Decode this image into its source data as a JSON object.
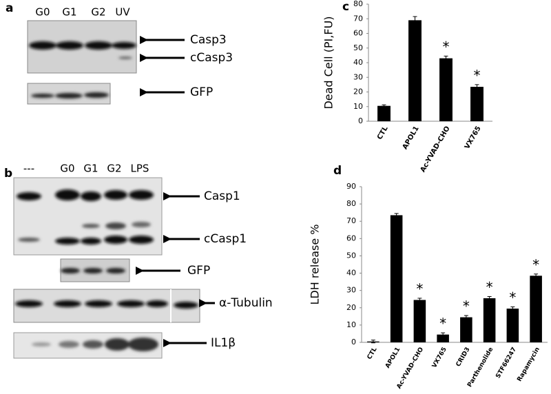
{
  "panels": {
    "a": {
      "label": "a",
      "lanes": [
        "G0",
        "G1",
        "G2",
        "UV"
      ],
      "bands": [
        "Casp3",
        "cCasp3",
        "GFP"
      ]
    },
    "b": {
      "label": "b",
      "lanes": [
        "---",
        "G0",
        "G1",
        "G2",
        "LPS"
      ],
      "bands": [
        "Casp1",
        "cCasp1",
        "GFP",
        "α-Tubulin",
        "IL1β"
      ]
    }
  },
  "chart_data": [
    {
      "type": "bar",
      "panel_label": "c",
      "y_label": "Dead Cell (PI,FU)",
      "categories": [
        "CTL",
        "APOL1",
        "Ac-YVAD-CHO",
        "VX765"
      ],
      "values": [
        10.5,
        69,
        43,
        23.5
      ],
      "errors": [
        0.7,
        2.5,
        1.5,
        1.5
      ],
      "annotations": [
        null,
        null,
        "*",
        "*"
      ],
      "color": "#000000",
      "ylim": [
        0,
        80
      ],
      "yticks": [
        0,
        10,
        20,
        30,
        40,
        50,
        60,
        70,
        80
      ],
      "grid": false
    },
    {
      "type": "bar",
      "panel_label": "d",
      "y_label": "LDH release %",
      "categories": [
        "CTL",
        "APOL1",
        "Ac-YVAD-CHO",
        "VX765",
        "CRID3",
        "Parthenolide",
        "STF66247",
        "Rapamycin"
      ],
      "values": [
        0.5,
        73.5,
        24.5,
        4.5,
        14.5,
        25.5,
        19.5,
        38.5
      ],
      "errors": [
        0.8,
        1,
        1,
        1,
        1,
        1,
        1,
        1
      ],
      "annotations": [
        null,
        null,
        "*",
        "*",
        "*",
        "*",
        "*",
        "*"
      ],
      "color": "#000000",
      "ylim": [
        0,
        90
      ],
      "yticks": [
        0,
        10,
        20,
        30,
        40,
        50,
        60,
        70,
        80,
        90
      ],
      "grid": false
    }
  ]
}
